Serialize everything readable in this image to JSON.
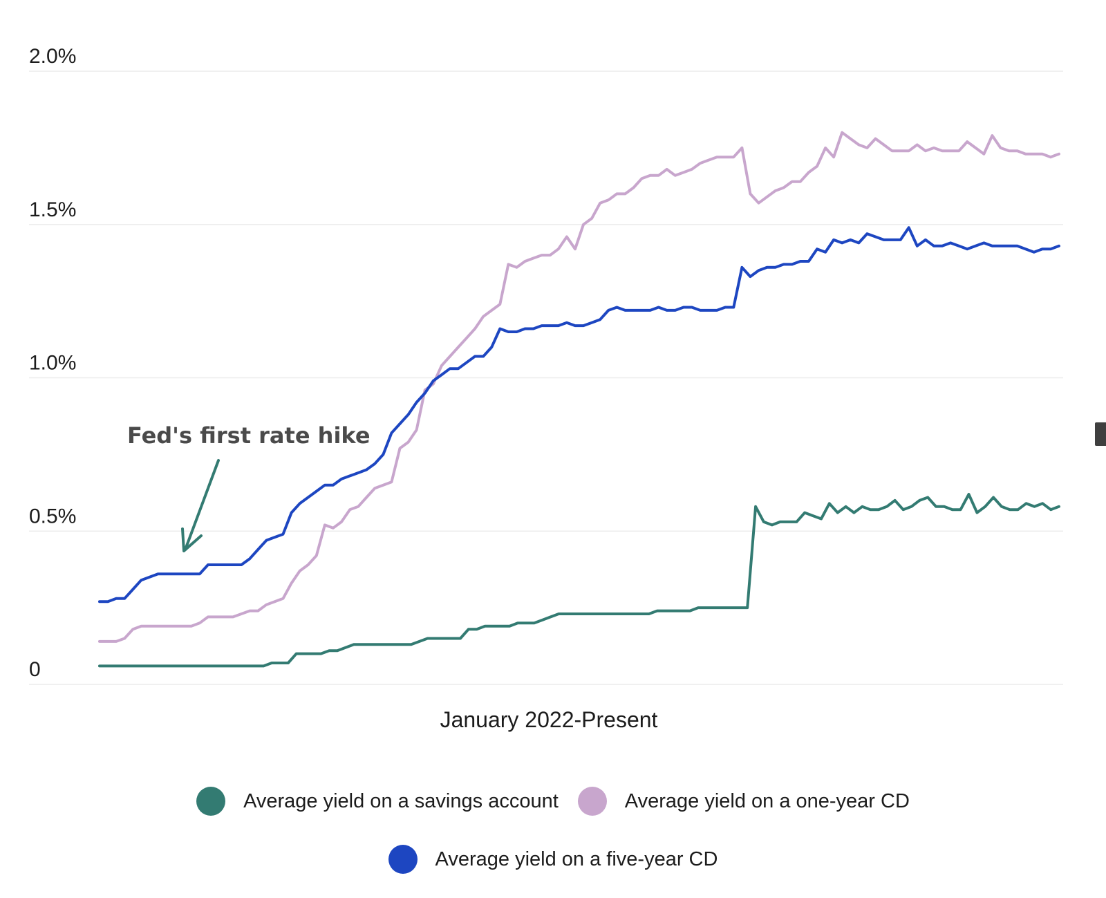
{
  "chart_data": {
    "type": "line",
    "xlabel": "January 2022-Present",
    "ylabel": "",
    "ylim": [
      0,
      2.0
    ],
    "yticks": [
      {
        "value": 0,
        "label": "0"
      },
      {
        "value": 0.5,
        "label": "0.5%"
      },
      {
        "value": 1.0,
        "label": "1.0%"
      },
      {
        "value": 1.5,
        "label": "1.5%"
      },
      {
        "value": 2.0,
        "label": "2.0%"
      }
    ],
    "grid": true,
    "legend_position": "bottom",
    "annotation": {
      "text": "Fed's first rate hike",
      "points_to_index": 10
    },
    "series": [
      {
        "name": "Average yield on a savings account",
        "color": "#337b72",
        "values": [
          0.06,
          0.06,
          0.06,
          0.06,
          0.06,
          0.06,
          0.06,
          0.06,
          0.06,
          0.06,
          0.06,
          0.06,
          0.06,
          0.06,
          0.06,
          0.06,
          0.06,
          0.06,
          0.06,
          0.06,
          0.06,
          0.07,
          0.07,
          0.07,
          0.1,
          0.1,
          0.1,
          0.1,
          0.11,
          0.11,
          0.12,
          0.13,
          0.13,
          0.13,
          0.13,
          0.13,
          0.13,
          0.13,
          0.13,
          0.14,
          0.15,
          0.15,
          0.15,
          0.15,
          0.15,
          0.18,
          0.18,
          0.19,
          0.19,
          0.19,
          0.19,
          0.2,
          0.2,
          0.2,
          0.21,
          0.22,
          0.23,
          0.23,
          0.23,
          0.23,
          0.23,
          0.23,
          0.23,
          0.23,
          0.23,
          0.23,
          0.23,
          0.23,
          0.24,
          0.24,
          0.24,
          0.24,
          0.24,
          0.25,
          0.25,
          0.25,
          0.25,
          0.25,
          0.25,
          0.25,
          0.58,
          0.53,
          0.52,
          0.53,
          0.53,
          0.53,
          0.56,
          0.55,
          0.54,
          0.59,
          0.56,
          0.58,
          0.56,
          0.58,
          0.57,
          0.57,
          0.58,
          0.6,
          0.57,
          0.58,
          0.6,
          0.61,
          0.58,
          0.58,
          0.57,
          0.57,
          0.62,
          0.56,
          0.58,
          0.61,
          0.58,
          0.57,
          0.57,
          0.59,
          0.58,
          0.59,
          0.57,
          0.58
        ]
      },
      {
        "name": "Average yield on a one-year CD",
        "color": "#c8a6cd",
        "values": [
          0.14,
          0.14,
          0.14,
          0.15,
          0.18,
          0.19,
          0.19,
          0.19,
          0.19,
          0.19,
          0.19,
          0.19,
          0.2,
          0.22,
          0.22,
          0.22,
          0.22,
          0.23,
          0.24,
          0.24,
          0.26,
          0.27,
          0.28,
          0.33,
          0.37,
          0.39,
          0.42,
          0.52,
          0.51,
          0.53,
          0.57,
          0.58,
          0.61,
          0.64,
          0.65,
          0.66,
          0.77,
          0.79,
          0.83,
          0.96,
          0.98,
          1.04,
          1.07,
          1.1,
          1.13,
          1.16,
          1.2,
          1.22,
          1.24,
          1.37,
          1.36,
          1.38,
          1.39,
          1.4,
          1.4,
          1.42,
          1.46,
          1.42,
          1.5,
          1.52,
          1.57,
          1.58,
          1.6,
          1.6,
          1.62,
          1.65,
          1.66,
          1.66,
          1.68,
          1.66,
          1.67,
          1.68,
          1.7,
          1.71,
          1.72,
          1.72,
          1.72,
          1.75,
          1.6,
          1.57,
          1.59,
          1.61,
          1.62,
          1.64,
          1.64,
          1.67,
          1.69,
          1.75,
          1.72,
          1.8,
          1.78,
          1.76,
          1.75,
          1.78,
          1.76,
          1.74,
          1.74,
          1.74,
          1.76,
          1.74,
          1.75,
          1.74,
          1.74,
          1.74,
          1.77,
          1.75,
          1.73,
          1.79,
          1.75,
          1.74,
          1.74,
          1.73,
          1.73,
          1.73,
          1.72,
          1.73
        ]
      },
      {
        "name": "Average yield on a five-year CD",
        "color": "#1d46c1",
        "values": [
          0.27,
          0.27,
          0.28,
          0.28,
          0.31,
          0.34,
          0.35,
          0.36,
          0.36,
          0.36,
          0.36,
          0.36,
          0.36,
          0.39,
          0.39,
          0.39,
          0.39,
          0.39,
          0.41,
          0.44,
          0.47,
          0.48,
          0.49,
          0.56,
          0.59,
          0.61,
          0.63,
          0.65,
          0.65,
          0.67,
          0.68,
          0.69,
          0.7,
          0.72,
          0.75,
          0.82,
          0.85,
          0.88,
          0.92,
          0.95,
          0.99,
          1.01,
          1.03,
          1.03,
          1.05,
          1.07,
          1.07,
          1.1,
          1.16,
          1.15,
          1.15,
          1.16,
          1.16,
          1.17,
          1.17,
          1.17,
          1.18,
          1.17,
          1.17,
          1.18,
          1.19,
          1.22,
          1.23,
          1.22,
          1.22,
          1.22,
          1.22,
          1.23,
          1.22,
          1.22,
          1.23,
          1.23,
          1.22,
          1.22,
          1.22,
          1.23,
          1.23,
          1.36,
          1.33,
          1.35,
          1.36,
          1.36,
          1.37,
          1.37,
          1.38,
          1.38,
          1.42,
          1.41,
          1.45,
          1.44,
          1.45,
          1.44,
          1.47,
          1.46,
          1.45,
          1.45,
          1.45,
          1.49,
          1.43,
          1.45,
          1.43,
          1.43,
          1.44,
          1.43,
          1.42,
          1.43,
          1.44,
          1.43,
          1.43,
          1.43,
          1.43,
          1.42,
          1.41,
          1.42,
          1.42,
          1.43
        ]
      }
    ]
  }
}
